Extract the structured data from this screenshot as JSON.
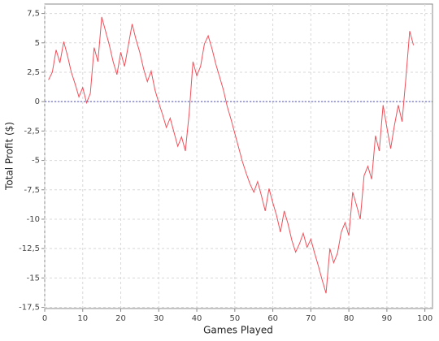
{
  "chart_data": {
    "type": "line",
    "x_label": "Games Played",
    "y_label": "Total Profit ($)",
    "x": [
      1,
      2,
      3,
      4,
      5,
      6,
      7,
      8,
      9,
      10,
      11,
      12,
      13,
      14,
      15,
      16,
      17,
      18,
      19,
      20,
      21,
      22,
      23,
      24,
      25,
      26,
      27,
      28,
      29,
      30,
      31,
      32,
      33,
      34,
      35,
      36,
      37,
      38,
      39,
      40,
      41,
      42,
      43,
      44,
      45,
      46,
      47,
      48,
      49,
      50,
      51,
      52,
      53,
      54,
      55,
      56,
      57,
      58,
      59,
      60,
      61,
      62,
      63,
      64,
      65,
      66,
      67,
      68,
      69,
      70,
      71,
      72,
      73,
      74,
      75,
      76,
      77,
      78,
      79,
      80,
      81,
      82,
      83,
      84,
      85,
      86,
      87,
      88,
      89,
      90,
      91,
      92,
      93,
      94,
      95,
      96,
      97
    ],
    "series": [
      {
        "name": "Total Profit",
        "color": "#f0505a",
        "values": [
          1.85,
          2.5,
          4.4,
          3.3,
          5.1,
          3.9,
          2.5,
          1.5,
          0.4,
          1.2,
          -0.1,
          0.7,
          4.6,
          3.4,
          7.2,
          6.0,
          4.8,
          3.4,
          2.3,
          4.2,
          3.0,
          4.8,
          6.6,
          5.3,
          4.2,
          2.8,
          1.7,
          2.6,
          1.0,
          -0.1,
          -1.1,
          -2.2,
          -1.4,
          -2.6,
          -3.8,
          -3.0,
          -4.2,
          -1.0,
          3.4,
          2.2,
          3.0,
          4.9,
          5.6,
          4.5,
          3.2,
          2.1,
          1.0,
          -0.4,
          -1.5,
          -2.7,
          -3.9,
          -5.1,
          -6.1,
          -7.0,
          -7.7,
          -6.8,
          -8.0,
          -9.3,
          -7.4,
          -8.6,
          -9.7,
          -11.1,
          -9.3,
          -10.4,
          -11.8,
          -12.8,
          -12.1,
          -11.2,
          -12.4,
          -11.7,
          -12.9,
          -14.0,
          -15.2,
          -16.3,
          -12.5,
          -13.7,
          -12.9,
          -11.1,
          -10.3,
          -11.4,
          -7.7,
          -8.8,
          -10.0,
          -6.3,
          -5.5,
          -6.6,
          -2.9,
          -4.2,
          -0.3,
          -2.2,
          -4.0,
          -2.0,
          -0.3,
          -1.7,
          2.0,
          6.0,
          4.8
        ]
      }
    ],
    "xlim": [
      0,
      102
    ],
    "ylim": [
      -17.6,
      8.3
    ],
    "xticks": [
      0,
      10,
      20,
      30,
      40,
      50,
      60,
      70,
      80,
      90,
      100
    ],
    "yticks": [
      {
        "value": 7.5,
        "label": "7,5"
      },
      5,
      {
        "value": 2.5,
        "label": "2,5"
      },
      0,
      {
        "value": -2.5,
        "label": "-2,5"
      },
      -5,
      {
        "value": -7.5,
        "label": "-7,5"
      },
      -10,
      {
        "value": -12.5,
        "label": "-12,5"
      },
      -15,
      {
        "value": -17.5,
        "label": "-17,5"
      }
    ],
    "grid": true,
    "zero_line": true
  }
}
